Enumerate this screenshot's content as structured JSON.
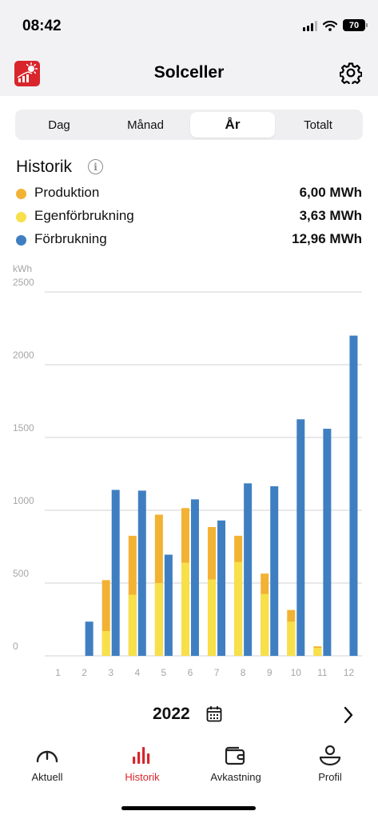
{
  "status": {
    "time": "08:42",
    "battery": "70"
  },
  "header": {
    "title": "Solceller",
    "logo_icon": "solar-app-logo-icon",
    "settings_icon": "gear-icon"
  },
  "segments": [
    {
      "label": "Dag",
      "active": false
    },
    {
      "label": "Månad",
      "active": false
    },
    {
      "label": "År",
      "active": true
    },
    {
      "label": "Totalt",
      "active": false
    }
  ],
  "history": {
    "title": "Historik",
    "info_icon": "i",
    "legend": [
      {
        "label": "Produktion",
        "value": "6,00 MWh",
        "color": "#f2b233"
      },
      {
        "label": "Egenförbrukning",
        "value": "3,63 MWh",
        "color": "#f7e04a"
      },
      {
        "label": "Förbrukning",
        "value": "12,96 MWh",
        "color": "#3f7fc1"
      }
    ]
  },
  "chart_data": {
    "type": "bar",
    "ylabel": "kWh",
    "ylim": [
      0,
      2500
    ],
    "yticks": [
      0,
      500,
      1000,
      1500,
      2000,
      2500
    ],
    "grid": true,
    "categories": [
      "1",
      "2",
      "3",
      "4",
      "5",
      "6",
      "7",
      "8",
      "9",
      "10",
      "11",
      "12"
    ],
    "series": [
      {
        "name": "Produktion",
        "color": "#f2b233",
        "values": [
          0,
          0,
          520,
          825,
          970,
          1015,
          885,
          825,
          565,
          315,
          65,
          0
        ]
      },
      {
        "name": "Egenförbrukning",
        "color": "#f7e04a",
        "values": [
          0,
          0,
          170,
          420,
          500,
          640,
          525,
          645,
          425,
          235,
          55,
          0
        ]
      },
      {
        "name": "Förbrukning",
        "color": "#3f7fc1",
        "values": [
          0,
          235,
          1140,
          1135,
          695,
          1075,
          930,
          1185,
          1165,
          1625,
          1560,
          2200
        ]
      }
    ]
  },
  "year_nav": {
    "year": "2022"
  },
  "tabs": [
    {
      "label": "Aktuell",
      "icon": "gauge-icon",
      "active": false
    },
    {
      "label": "Historik",
      "icon": "bar-chart-icon",
      "active": true
    },
    {
      "label": "Avkastning",
      "icon": "wallet-icon",
      "active": false
    },
    {
      "label": "Profil",
      "icon": "profile-icon",
      "active": false
    }
  ],
  "colors": {
    "accent": "#d8262c"
  }
}
